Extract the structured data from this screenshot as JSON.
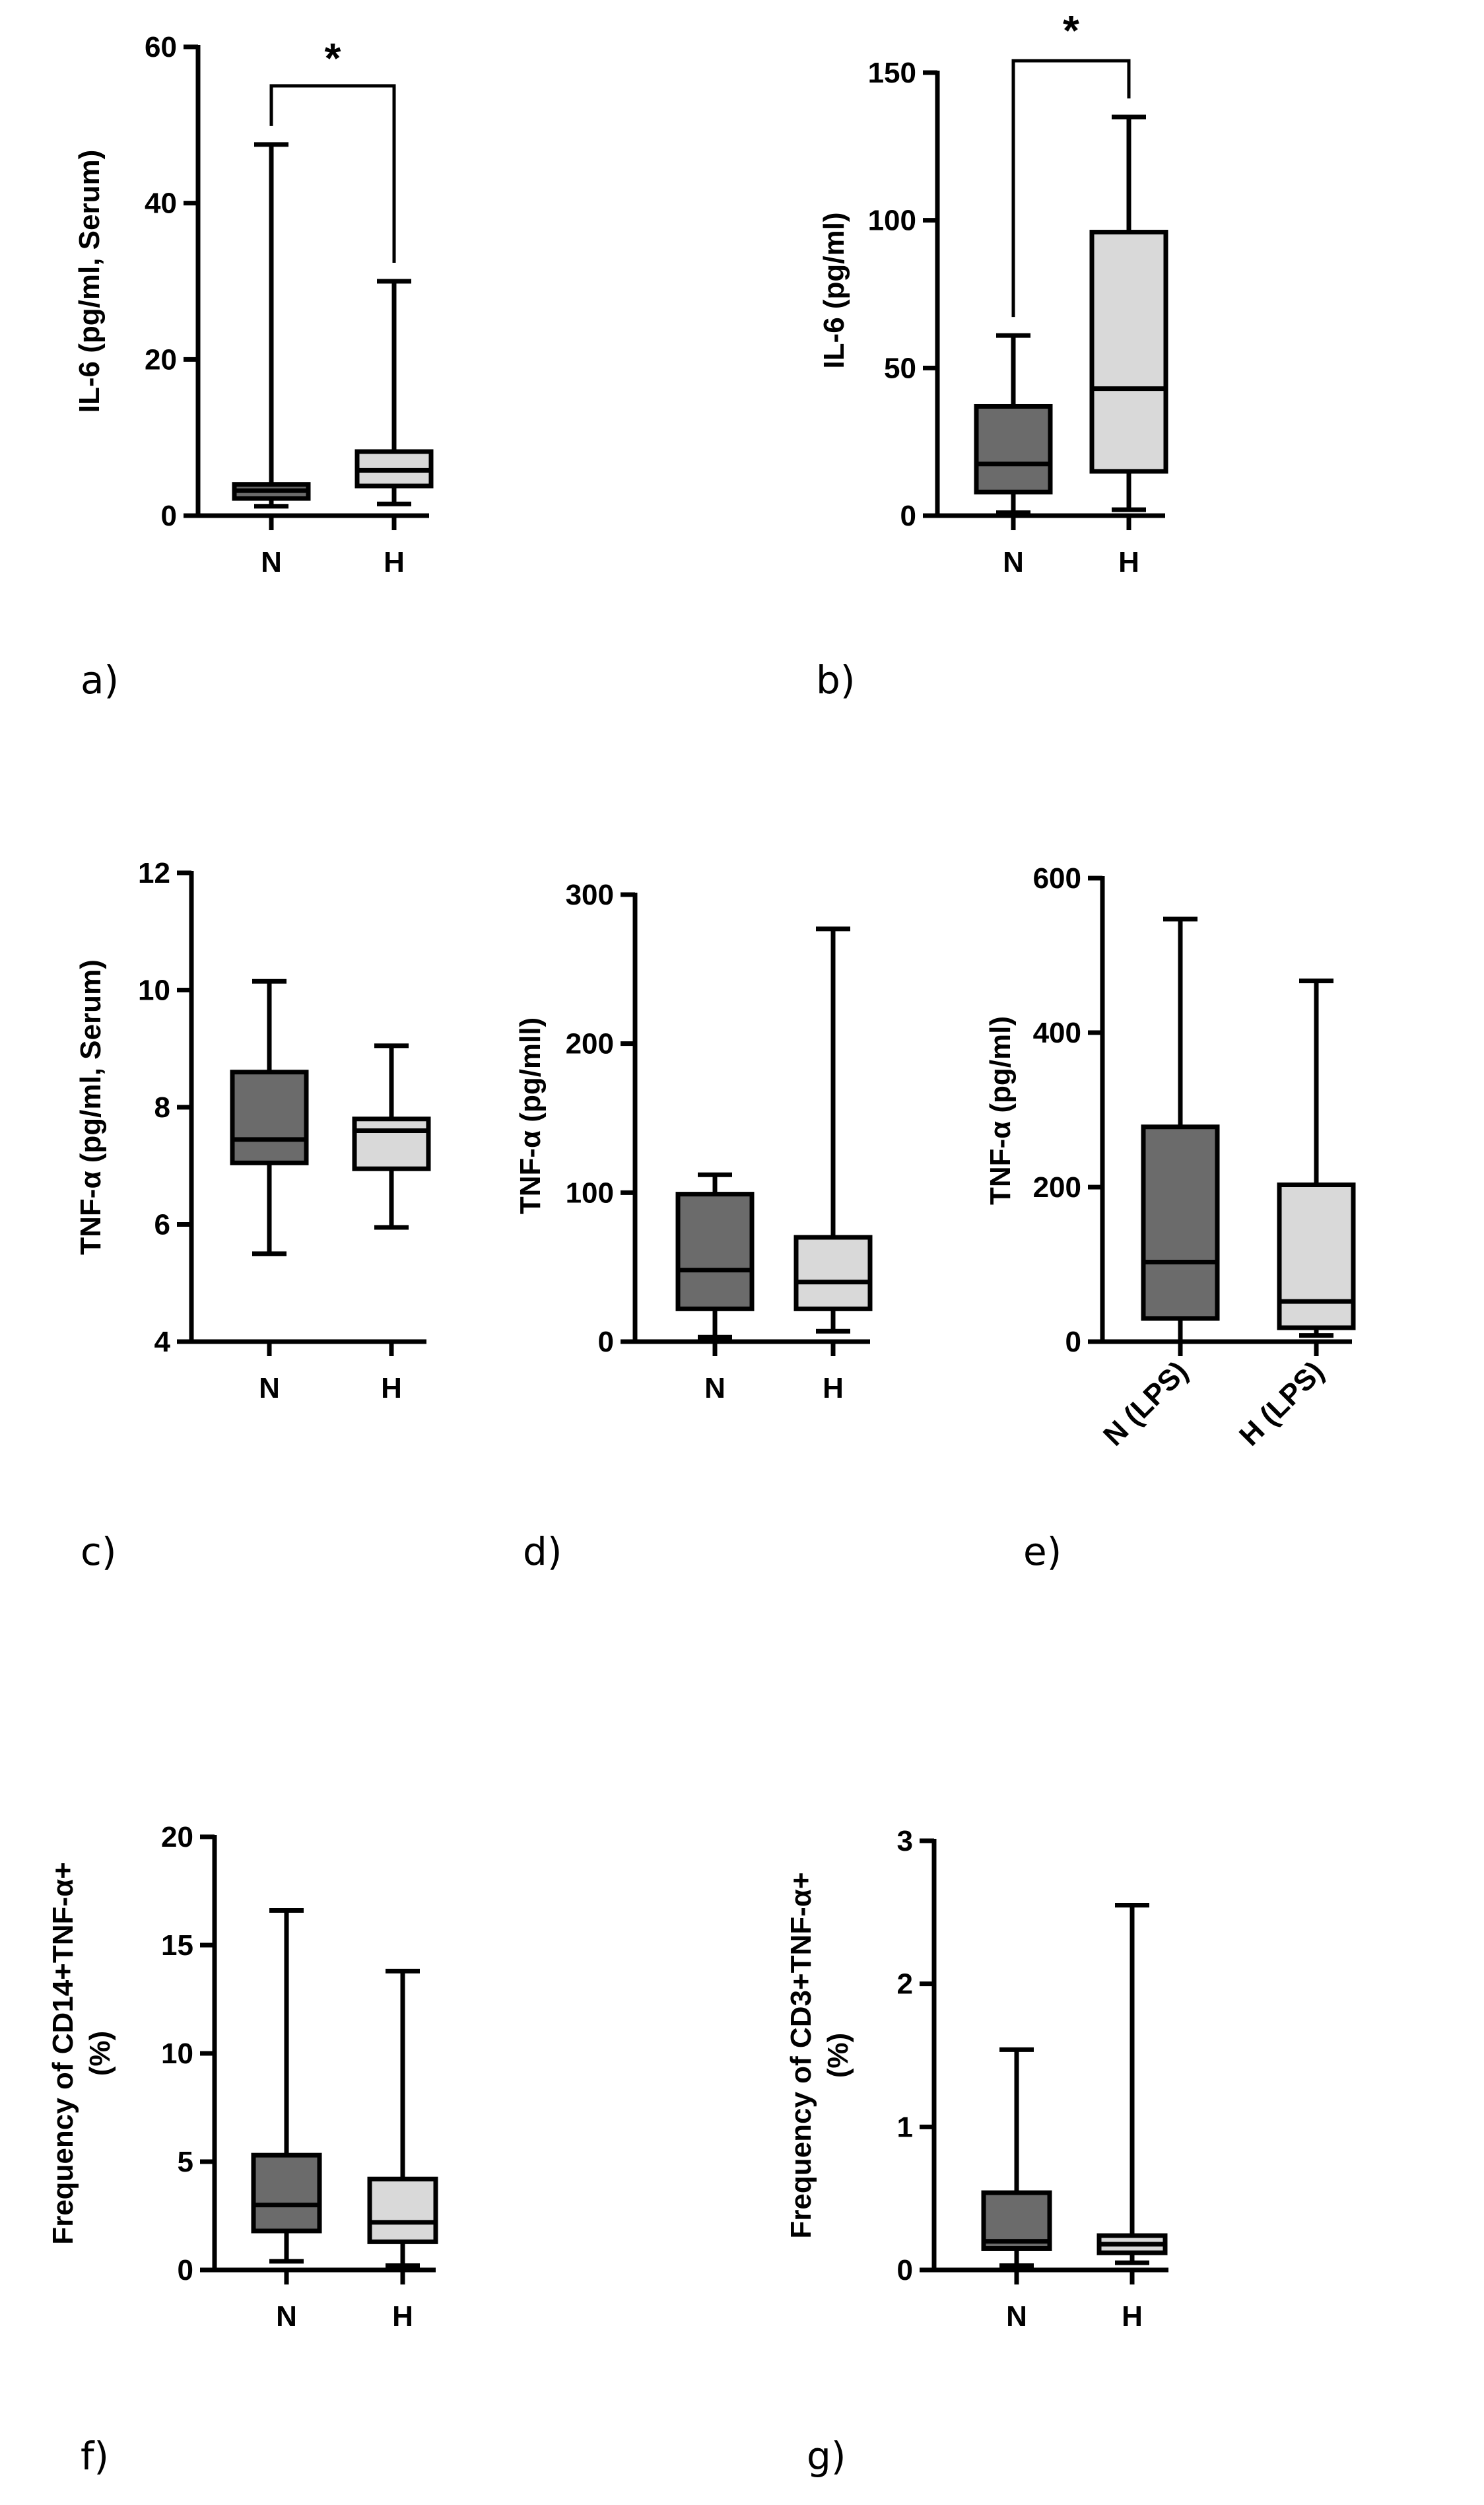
{
  "figure_title": "",
  "colors": {
    "N": "#6b6b6b",
    "H": "#d9d9d9",
    "stroke": "#000000"
  },
  "chart_data": [
    {
      "id": "a",
      "panel_label": "a)",
      "type": "boxplot",
      "ylabel": "IL-6 (pg/ml, Serum)",
      "ylim": [
        0,
        60
      ],
      "yticks": [
        0,
        20,
        40,
        60
      ],
      "categories": [
        "N",
        "H"
      ],
      "boxes": [
        {
          "name": "N",
          "min": 1.2,
          "q1": 2.2,
          "median": 3.2,
          "q3": 4.0,
          "max": 47.5
        },
        {
          "name": "H",
          "min": 1.5,
          "q1": 3.8,
          "median": 5.8,
          "q3": 8.2,
          "max": 30.0
        }
      ],
      "significance": {
        "between": [
          "N",
          "H"
        ],
        "label": "*"
      }
    },
    {
      "id": "b",
      "panel_label": "b)",
      "type": "boxplot",
      "ylabel": "IL-6 (pg/ml)",
      "ylim": [
        0,
        150
      ],
      "yticks": [
        0,
        50,
        100,
        150
      ],
      "categories": [
        "N",
        "H"
      ],
      "boxes": [
        {
          "name": "N",
          "min": 1.0,
          "q1": 8.0,
          "median": 17.5,
          "q3": 37.0,
          "max": 61.0
        },
        {
          "name": "H",
          "min": 2.0,
          "q1": 15.0,
          "median": 43.0,
          "q3": 96.0,
          "max": 135.0
        }
      ],
      "significance": {
        "between": [
          "N",
          "H"
        ],
        "label": "*"
      }
    },
    {
      "id": "c",
      "panel_label": "c)",
      "type": "boxplot",
      "ylabel": "TNF-α (pg/ml,  Serum)",
      "ylim": [
        4,
        12
      ],
      "yticks": [
        4,
        6,
        8,
        10,
        12
      ],
      "categories": [
        "N",
        "H"
      ],
      "boxes": [
        {
          "name": "N",
          "min": 5.5,
          "q1": 7.05,
          "median": 7.45,
          "q3": 8.6,
          "max": 10.15
        },
        {
          "name": "H",
          "min": 5.95,
          "q1": 6.95,
          "median": 7.6,
          "q3": 7.8,
          "max": 9.05
        }
      ]
    },
    {
      "id": "d",
      "panel_label": "d)",
      "type": "boxplot",
      "ylabel": "TNF-α (pg/mll)",
      "ylim": [
        0,
        300
      ],
      "yticks": [
        0,
        100,
        200,
        300
      ],
      "categories": [
        "N",
        "H"
      ],
      "boxes": [
        {
          "name": "N",
          "min": 3.0,
          "q1": 22.0,
          "median": 48.0,
          "q3": 99.0,
          "max": 112.0
        },
        {
          "name": "H",
          "min": 7.0,
          "q1": 22.0,
          "median": 40.0,
          "q3": 70.0,
          "max": 277.0
        }
      ]
    },
    {
      "id": "e",
      "panel_label": "e)",
      "type": "boxplot",
      "ylabel": "TNF-α (pg/ml)",
      "ylim": [
        0,
        600
      ],
      "yticks": [
        0,
        200,
        400,
        600
      ],
      "categories": [
        "N (LPS)",
        "H (LPS)"
      ],
      "rotated_category_labels": true,
      "boxes": [
        {
          "name": "N (LPS)",
          "min": 0.0,
          "q1": 30.0,
          "median": 103.0,
          "q3": 278.0,
          "max": 547.0
        },
        {
          "name": "H (LPS)",
          "min": 8.0,
          "q1": 18.0,
          "median": 52.0,
          "q3": 203.0,
          "max": 467.0
        }
      ]
    },
    {
      "id": "f",
      "panel_label": "f)",
      "type": "boxplot",
      "ylabel": "Frequency of CD14+TNF-α+",
      "ylabel2": "(%)",
      "ylim": [
        0,
        20
      ],
      "yticks": [
        0,
        5,
        10,
        15,
        20
      ],
      "categories": [
        "N",
        "H"
      ],
      "boxes": [
        {
          "name": "N",
          "min": 0.4,
          "q1": 1.8,
          "median": 3.0,
          "q3": 5.3,
          "max": 16.6
        },
        {
          "name": "H",
          "min": 0.2,
          "q1": 1.3,
          "median": 2.2,
          "q3": 4.2,
          "max": 13.8
        }
      ]
    },
    {
      "id": "g",
      "panel_label": "g)",
      "type": "boxplot",
      "ylabel": "Frequency of CD3+TNF-α+",
      "ylabel2": "(%)",
      "ylim": [
        0,
        3
      ],
      "yticks": [
        0,
        1,
        2,
        3
      ],
      "categories": [
        "N",
        "H"
      ],
      "boxes": [
        {
          "name": "N",
          "min": 0.03,
          "q1": 0.15,
          "median": 0.2,
          "q3": 0.54,
          "max": 1.54
        },
        {
          "name": "H",
          "min": 0.05,
          "q1": 0.12,
          "median": 0.18,
          "q3": 0.24,
          "max": 2.55
        }
      ]
    }
  ]
}
